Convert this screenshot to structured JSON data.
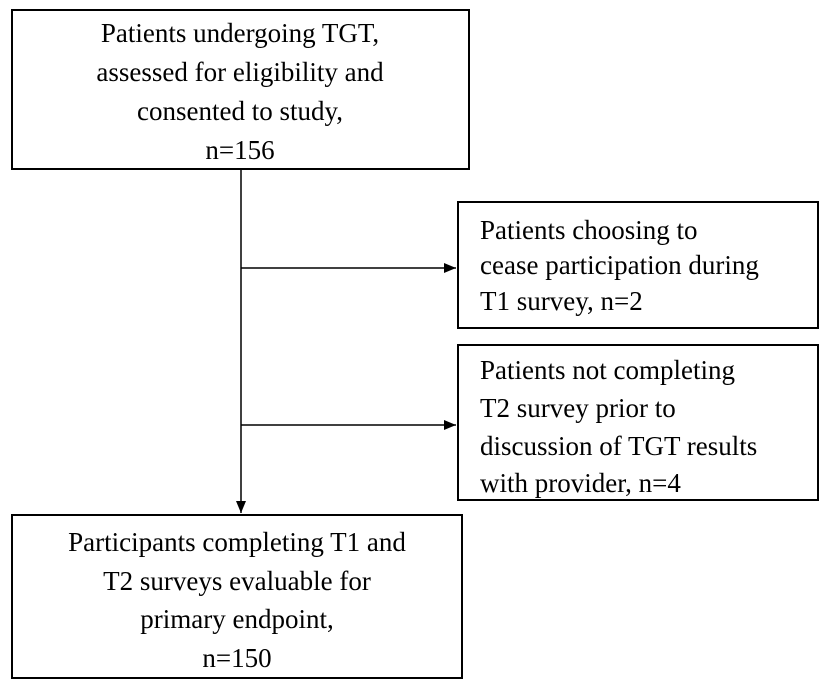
{
  "nodes": [
    {
      "lines": [
        "Patients undergoing TGT,",
        "assessed for eligibility and",
        "consented to study,",
        "n=156"
      ]
    },
    {
      "lines": [
        "Patients choosing to",
        "cease participation during",
        "T1 survey, n=2"
      ]
    },
    {
      "lines": [
        "Patients not completing",
        "T2 survey prior to",
        "discussion of TGT results",
        "with provider, n=4"
      ]
    },
    {
      "lines": [
        "Participants completing T1 and",
        "T2 surveys evaluable for",
        "primary endpoint,",
        "n=150"
      ]
    }
  ]
}
